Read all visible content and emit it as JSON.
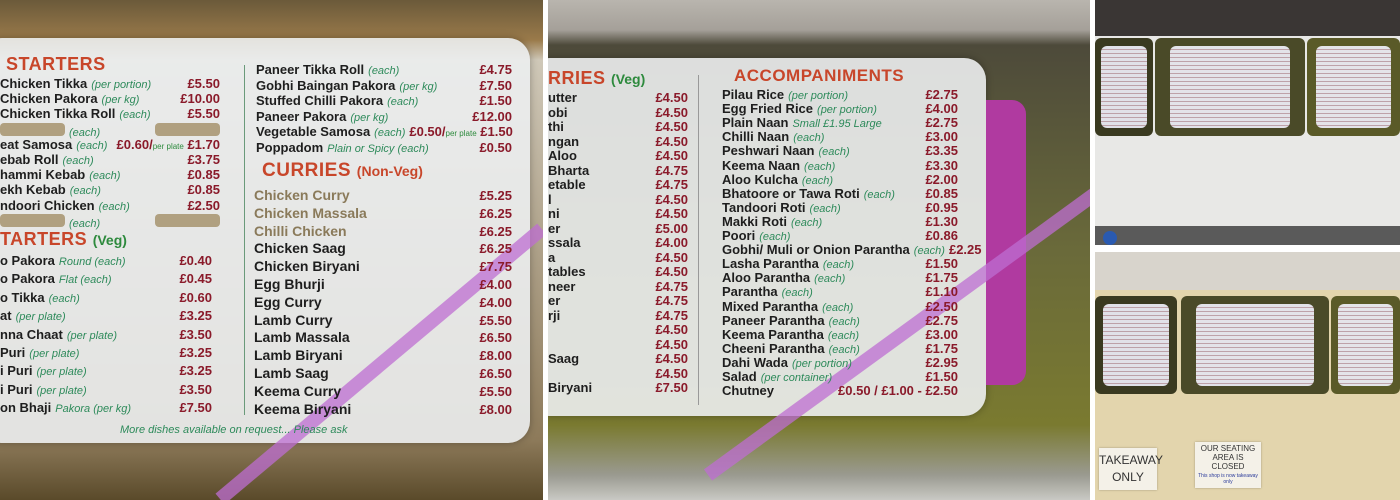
{
  "left_board": {
    "starters": {
      "title": "STARTERS",
      "items": [
        {
          "name": "Chicken Tikka",
          "note": "(per portion)",
          "price": "£5.50"
        },
        {
          "name": "Chicken Pakora",
          "note": "(per kg)",
          "price": "£10.00"
        },
        {
          "name": "Chicken Tikka Roll",
          "note": "(each)",
          "price": "£5.50"
        },
        {
          "name": "",
          "note": "(each)",
          "price": "",
          "covered": true
        },
        {
          "name": "eat Samosa",
          "note": "(each)",
          "price": "£0.60/per plate £1.70"
        },
        {
          "name": "ebab Roll",
          "note": "(each)",
          "price": "£3.75"
        },
        {
          "name": "hammi Kebab",
          "note": "(each)",
          "price": "£0.85"
        },
        {
          "name": "ekh Kebab",
          "note": "(each)",
          "price": "£0.85"
        },
        {
          "name": "ndoori Chicken",
          "note": "(each)",
          "price": "£2.50"
        },
        {
          "name": "",
          "note": "(each)",
          "price": "",
          "covered": true
        }
      ]
    },
    "starters_veg": {
      "title": "TARTERS",
      "subtitle": "(Veg)",
      "items": [
        {
          "name": "o Pakora",
          "note": "Round (each)",
          "price": "£0.40"
        },
        {
          "name": "o Pakora",
          "note": "Flat (each)",
          "price": "£0.45"
        },
        {
          "name": "o Tikka",
          "note": "(each)",
          "price": "£0.60"
        },
        {
          "name": "at",
          "note": "(per plate)",
          "price": "£3.25"
        },
        {
          "name": "nna Chaat",
          "note": "(per plate)",
          "price": "£3.50"
        },
        {
          "name": "Puri",
          "note": "(per plate)",
          "price": "£3.25"
        },
        {
          "name": "i Puri",
          "note": "(per plate)",
          "price": "£3.25"
        },
        {
          "name": "i Puri",
          "note": "(per plate)",
          "price": "£3.50"
        },
        {
          "name": "on Bhaji",
          "note": "Pakora (per kg)",
          "price": "£7.50"
        }
      ]
    },
    "more_starters": {
      "items": [
        {
          "name": "Paneer Tikka Roll",
          "note": "(each)",
          "price": "£4.75"
        },
        {
          "name": "Gobhi Baingan Pakora",
          "note": "(per kg)",
          "price": "£7.50"
        },
        {
          "name": "Stuffed Chilli Pakora",
          "note": "(each)",
          "price": "£1.50"
        },
        {
          "name": "Paneer Pakora",
          "note": "(per kg)",
          "price": "£12.00"
        },
        {
          "name": "Vegetable Samosa",
          "note": "(each)",
          "price": "£0.50/per plate £1.50"
        },
        {
          "name": "Poppadom",
          "note": "Plain or Spicy (each)",
          "price": "£0.50"
        }
      ]
    },
    "curries_nonveg": {
      "title": "CURRIES",
      "subtitle": "(Non-Veg)",
      "items": [
        {
          "name": "Chicken Curry",
          "price": "£5.25",
          "faded": true
        },
        {
          "name": "Chicken Massala",
          "price": "£6.25",
          "faded": true
        },
        {
          "name": "Chilli Chicken",
          "price": "£6.25",
          "faded": true
        },
        {
          "name": "Chicken Saag",
          "price": "£6.25"
        },
        {
          "name": "Chicken Biryani",
          "price": "£7.75"
        },
        {
          "name": "Egg Bhurji",
          "price": "£4.00"
        },
        {
          "name": "Egg Curry",
          "price": "£4.00"
        },
        {
          "name": "Lamb Curry",
          "price": "£5.50"
        },
        {
          "name": "Lamb Massala",
          "price": "£6.50"
        },
        {
          "name": "Lamb Biryani",
          "price": "£8.00"
        },
        {
          "name": "Lamb Saag",
          "price": "£6.50"
        },
        {
          "name": "Keema Curry",
          "price": "£5.50"
        },
        {
          "name": "Keema Biryani",
          "price": "£8.00"
        }
      ]
    },
    "footer": "More dishes available on request... Please ask"
  },
  "middle_board": {
    "curries_veg": {
      "title": "RRIES",
      "subtitle": "(Veg)",
      "items": [
        {
          "name": "utter",
          "price": "£4.50"
        },
        {
          "name": "obi",
          "price": "£4.50"
        },
        {
          "name": "thi",
          "price": "£4.50"
        },
        {
          "name": "ngan",
          "price": "£4.50"
        },
        {
          "name": "Aloo",
          "price": "£4.50"
        },
        {
          "name": "Bharta",
          "price": "£4.75"
        },
        {
          "name": "etable",
          "price": "£4.75"
        },
        {
          "name": "l",
          "price": "£4.50"
        },
        {
          "name": "ni",
          "price": "£4.50"
        },
        {
          "name": "er",
          "price": "£5.00"
        },
        {
          "name": "ssala",
          "price": "£4.00"
        },
        {
          "name": "a",
          "price": "£4.50"
        },
        {
          "name": "tables",
          "price": "£4.50"
        },
        {
          "name": "neer",
          "price": "£4.75"
        },
        {
          "name": "er",
          "price": "£4.75"
        },
        {
          "name": "rji",
          "price": "£4.75"
        },
        {
          "name": "",
          "price": "£4.50"
        },
        {
          "name": "",
          "price": "£4.50"
        },
        {
          "name": "Saag",
          "price": "£4.50"
        },
        {
          "name": "",
          "price": "£4.50"
        },
        {
          "name": "Biryani",
          "price": "£7.50"
        }
      ]
    },
    "accompaniments": {
      "title": "ACCOMPANIMENTS",
      "items": [
        {
          "name": "Pilau Rice",
          "note": "(per portion)",
          "price": "£2.75"
        },
        {
          "name": "Egg Fried Rice",
          "note": "(per portion)",
          "price": "£4.00"
        },
        {
          "name": "Plain Naan",
          "note": "Small £1.95   Large",
          "price": "£2.75"
        },
        {
          "name": "Chilli Naan",
          "note": "(each)",
          "price": "£3.00"
        },
        {
          "name": "Peshwari Naan",
          "note": "(each)",
          "price": "£3.35"
        },
        {
          "name": "Keema Naan",
          "note": "(each)",
          "price": "£3.30"
        },
        {
          "name": "Aloo Kulcha",
          "note": "(each)",
          "price": "£2.00"
        },
        {
          "name": "Bhatoore or Tawa Roti",
          "note": "(each)",
          "price": "£0.85"
        },
        {
          "name": "Tandoori Roti",
          "note": "(each)",
          "price": "£0.95"
        },
        {
          "name": "Makki Roti",
          "note": "(each)",
          "price": "£1.30"
        },
        {
          "name": "Poori",
          "note": "(each)",
          "price": "£0.86"
        },
        {
          "name": "Gobhi/ Muli or Onion Parantha",
          "note": "(each)",
          "price": "£2.25"
        },
        {
          "name": "Lasha Parantha",
          "note": "(each)",
          "price": "£1.50"
        },
        {
          "name": "Aloo Parantha",
          "note": "(each)",
          "price": "£1.75"
        },
        {
          "name": "Parantha",
          "note": "(each)",
          "price": "£1.10"
        },
        {
          "name": "Mixed Parantha",
          "note": "(each)",
          "price": "£2.50"
        },
        {
          "name": "Paneer Parantha",
          "note": "(each)",
          "price": "£2.75"
        },
        {
          "name": "Keema Parantha",
          "note": "(each)",
          "price": "£3.00"
        },
        {
          "name": "Cheeni Parantha",
          "note": "(each)",
          "price": "£1.75"
        },
        {
          "name": "Dahi Wada",
          "note": "(per portion)",
          "price": "£2.95"
        },
        {
          "name": "Salad",
          "note": "(per container)",
          "price": "£1.50"
        },
        {
          "name": "Chutney",
          "note": "",
          "price": "£0.50 / £1.00 - £2.50"
        }
      ]
    }
  },
  "signs": {
    "takeaway": "TAKEAWAY ONLY",
    "seating_title": "OUR SEATING AREA IS CLOSED",
    "seating_note": "This shop is now takeaway only"
  },
  "colors": {
    "heading": "#c8462a",
    "price": "#8a1a2a",
    "note": "#2d8a5a",
    "accent_stripe": "#be6ed2"
  }
}
